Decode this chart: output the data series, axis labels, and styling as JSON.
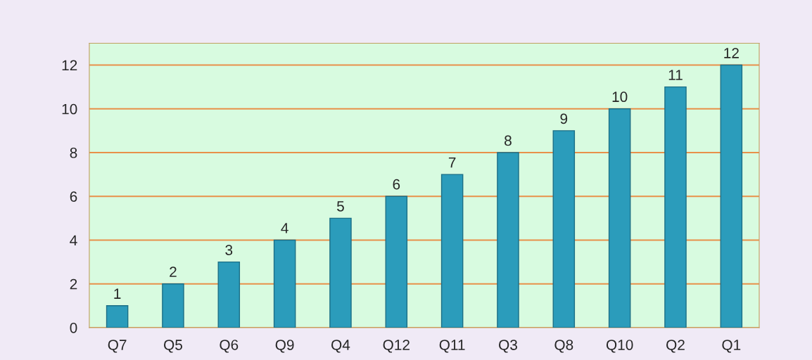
{
  "chart_data": {
    "type": "bar",
    "categories": [
      "Q7",
      "Q5",
      "Q6",
      "Q9",
      "Q4",
      "Q12",
      "Q11",
      "Q3",
      "Q8",
      "Q10",
      "Q2",
      "Q1"
    ],
    "values": [
      1,
      2,
      3,
      4,
      5,
      6,
      7,
      8,
      9,
      10,
      11,
      12
    ],
    "color": "#2b9cbb",
    "ylim": [
      0,
      13
    ],
    "yticks": [
      0,
      2,
      4,
      6,
      8,
      10,
      12
    ],
    "grid": "y",
    "data_labels": true
  }
}
